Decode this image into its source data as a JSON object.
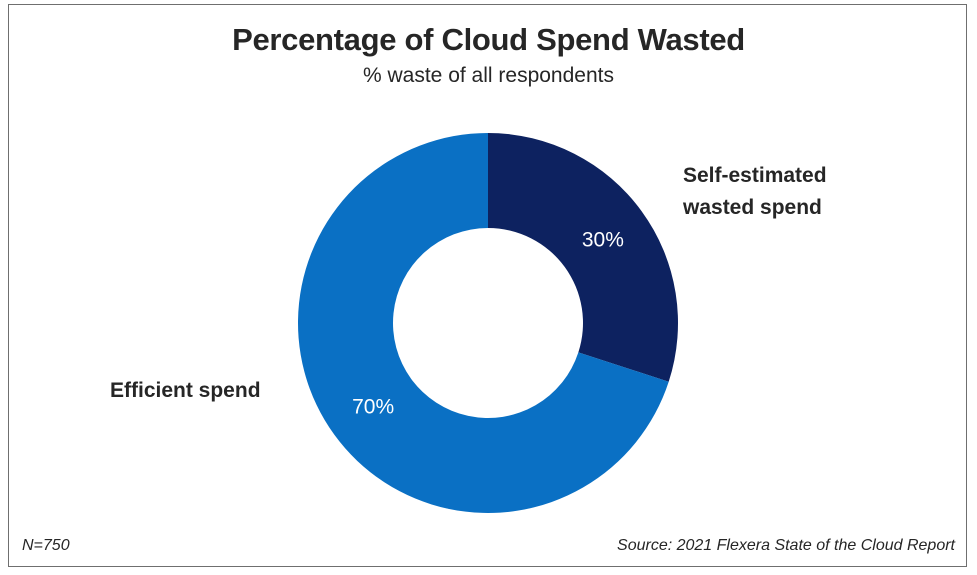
{
  "chart_data": {
    "type": "donut",
    "title": "Percentage of Cloud Spend Wasted",
    "subtitle": "% waste of all respondents",
    "slices": [
      {
        "name": "Self-estimated wasted spend",
        "name_lines": [
          "Self-estimated",
          "wasted spend"
        ],
        "value": 30,
        "label": "30%",
        "color": "#0d2260"
      },
      {
        "name": "Efficient spend",
        "name_lines": [
          "Efficient spend"
        ],
        "value": 70,
        "label": "70%",
        "color": "#0a70c4"
      }
    ]
  },
  "footer": {
    "sample_size": "N=750",
    "source": "Source: 2021 Flexera State of the Cloud Report"
  }
}
